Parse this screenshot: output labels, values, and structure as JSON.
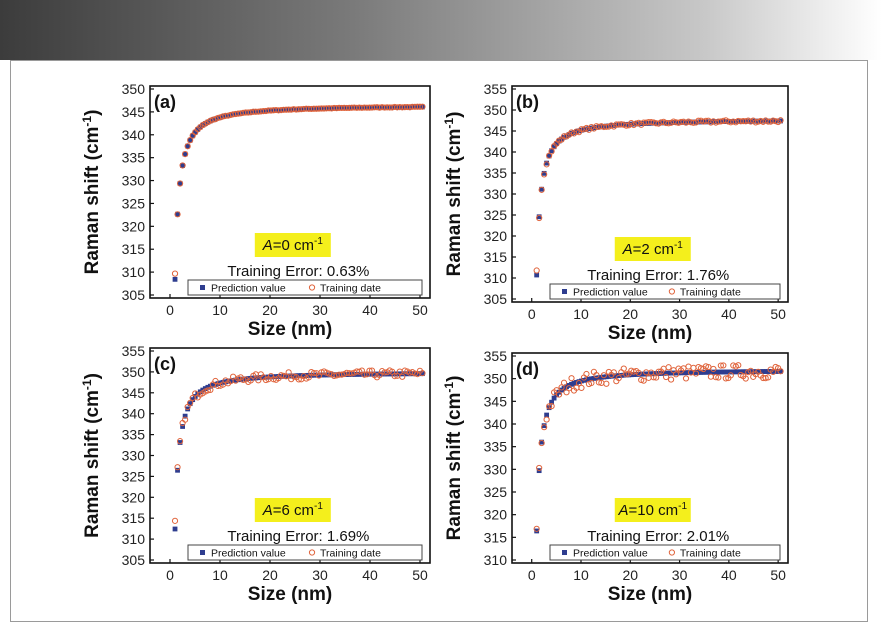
{
  "chart_data": [
    {
      "panel_label": "(a)",
      "type": "scatter",
      "xlabel": "Size (nm)",
      "ylabel": "Raman shift (cm-1)",
      "xlim": [
        0,
        50
      ],
      "ylim": [
        305,
        350
      ],
      "xticks": [
        "0",
        "10",
        "20",
        "30",
        "40",
        "50"
      ],
      "yticks": [
        "305",
        "310",
        "315",
        "320",
        "325",
        "330",
        "335",
        "340",
        "345",
        "350"
      ],
      "annotation_prefix": "A",
      "annotation_value": "=0 cm",
      "annotation_sup": "-1",
      "training_error": "Training Error: 0.63%",
      "legend": [
        "Prediction value",
        "Training date"
      ],
      "model": {
        "asymptote": 346.5,
        "amplitude": 38.3,
        "exponent": 1.15
      },
      "noise": 0.06,
      "colors": {
        "prediction": "#2e3d8f",
        "training": "#e0643c"
      }
    },
    {
      "panel_label": "(b)",
      "type": "scatter",
      "xlabel": "Size (nm)",
      "ylabel": "Raman shift (cm-1)",
      "xlim": [
        0,
        50
      ],
      "ylim": [
        305,
        355
      ],
      "xticks": [
        "0",
        "10",
        "20",
        "30",
        "40",
        "50"
      ],
      "yticks": [
        "305",
        "310",
        "315",
        "320",
        "325",
        "330",
        "335",
        "340",
        "345",
        "350",
        "355"
      ],
      "annotation_prefix": "A",
      "annotation_value": "=2 cm",
      "annotation_sup": "-1",
      "training_error": "Training Error: 1.76%",
      "legend": [
        "Prediction value",
        "Training date"
      ],
      "model": {
        "asymptote": 347.8,
        "amplitude": 37.3,
        "exponent": 1.15
      },
      "noise": 0.3,
      "colors": {
        "prediction": "#2e3d8f",
        "training": "#e0643c"
      }
    },
    {
      "panel_label": "(c)",
      "type": "scatter",
      "xlabel": "Size (nm)",
      "ylabel": "Raman shift (cm-1)",
      "xlim": [
        0,
        50
      ],
      "ylim": [
        305,
        355
      ],
      "xticks": [
        "0",
        "10",
        "20",
        "30",
        "40",
        "50"
      ],
      "yticks": [
        "305",
        "310",
        "315",
        "320",
        "325",
        "330",
        "335",
        "340",
        "345",
        "350",
        "355"
      ],
      "annotation_prefix": "A",
      "annotation_value": "=6 cm",
      "annotation_sup": "-1",
      "training_error": "Training Error: 1.69%",
      "legend": [
        "Prediction value",
        "Training date"
      ],
      "model": {
        "asymptote": 350.0,
        "amplitude": 37.8,
        "exponent": 1.15
      },
      "noise": 0.9,
      "colors": {
        "prediction": "#2e3d8f",
        "training": "#e0643c"
      }
    },
    {
      "panel_label": "(d)",
      "type": "scatter",
      "xlabel": "Size (nm)",
      "ylabel": "Raman shift (cm-1)",
      "xlim": [
        0,
        50
      ],
      "ylim": [
        310,
        355
      ],
      "xticks": [
        "0",
        "10",
        "20",
        "30",
        "40",
        "50"
      ],
      "yticks": [
        "310",
        "315",
        "320",
        "325",
        "330",
        "335",
        "340",
        "345",
        "350",
        "355"
      ],
      "annotation_prefix": "A",
      "annotation_value": "=10 cm",
      "annotation_sup": "-1",
      "training_error": "Training Error: 2.01%",
      "legend": [
        "Prediction value",
        "Training date"
      ],
      "model": {
        "asymptote": 352.0,
        "amplitude": 35.8,
        "exponent": 1.15
      },
      "noise": 1.6,
      "colors": {
        "prediction": "#2e3d8f",
        "training": "#e0643c"
      }
    }
  ],
  "colors": {
    "highlight": "#f4ef1c",
    "axis": "#111111",
    "border": "#9a9a9a"
  }
}
